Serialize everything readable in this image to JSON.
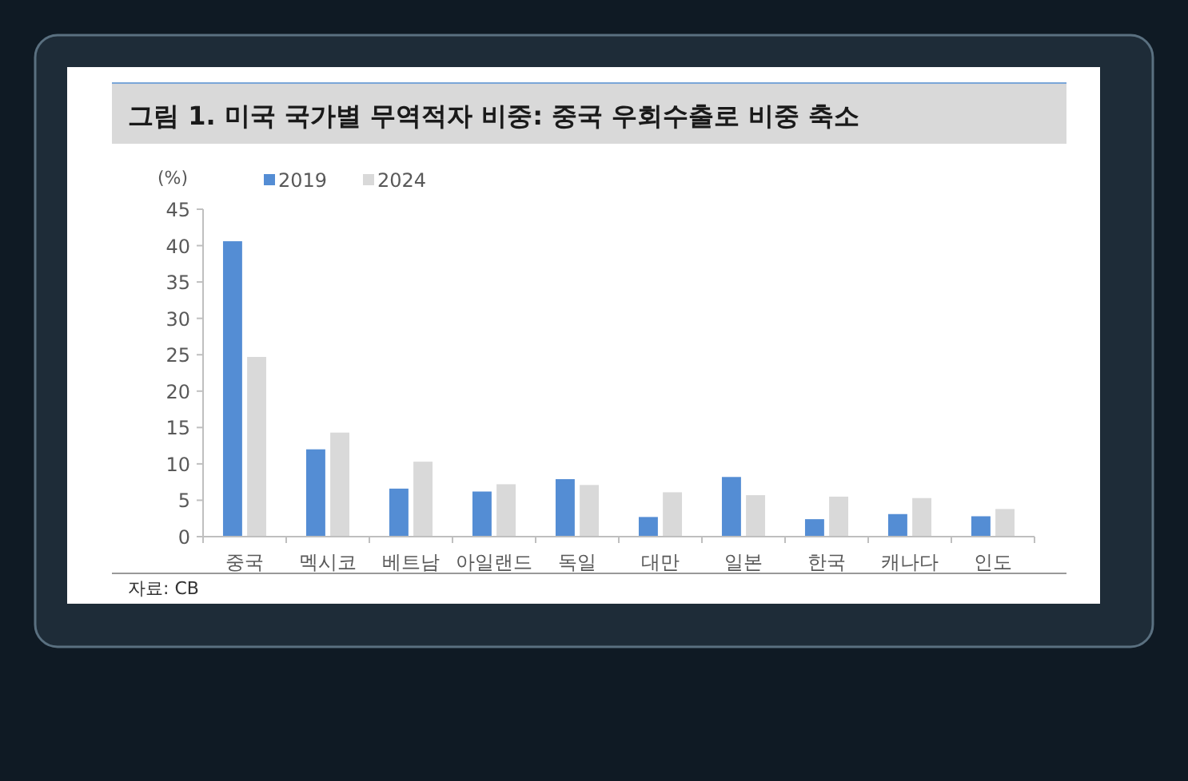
{
  "chart_data": {
    "type": "bar",
    "title": "그림 1. 미국 국가별 무역적자 비중: 중국 우회수출로 비중 축소",
    "ylabel": "(%)",
    "categories": [
      "중국",
      "멕시코",
      "베트남",
      "아일랜드",
      "독일",
      "대만",
      "일본",
      "한국",
      "캐나다",
      "인도"
    ],
    "series": [
      {
        "name": "2019",
        "color": "#548dd4",
        "values": [
          40.6,
          12.0,
          6.6,
          6.2,
          7.9,
          2.7,
          8.2,
          2.4,
          3.1,
          2.8
        ]
      },
      {
        "name": "2024",
        "color": "#d9d9d9",
        "values": [
          24.7,
          14.3,
          10.3,
          7.2,
          7.1,
          6.1,
          5.7,
          5.5,
          5.3,
          3.8
        ]
      }
    ],
    "ylim": [
      0,
      45
    ],
    "yticks": [
      0,
      5,
      10,
      15,
      20,
      25,
      30,
      35,
      40,
      45
    ],
    "grid": false,
    "legend": "top left",
    "annotations": [
      "자료: CB"
    ]
  }
}
